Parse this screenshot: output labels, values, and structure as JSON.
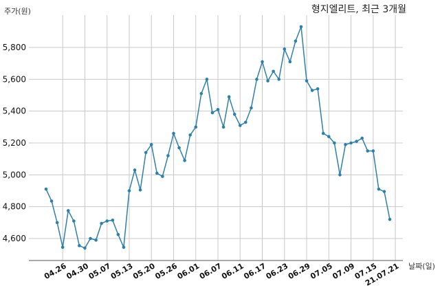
{
  "chart_data": {
    "type": "line",
    "title": "형지엘리트, 최근 3개월",
    "ylabel": "주가(원)",
    "xlabel": "날짜(일)",
    "ylim": [
      4450,
      5980
    ],
    "yticks": [
      4600,
      4800,
      5000,
      5200,
      5400,
      5600,
      5800
    ],
    "ytick_labels": [
      "4,600",
      "4,800",
      "5,000",
      "5,200",
      "5,400",
      "5,600",
      "5,800"
    ],
    "xtick_labels": [
      "04.26",
      "04.30",
      "05.07",
      "05.13",
      "05.20",
      "05.26",
      "06.01",
      "06.07",
      "06.11",
      "06.17",
      "06.23",
      "06.29",
      "07.05",
      "07.09",
      "07.15",
      "21.07.21"
    ],
    "xtick_index": [
      3,
      7,
      11,
      15,
      19,
      23,
      27,
      31,
      35,
      39,
      43,
      47,
      51,
      55,
      59,
      63
    ],
    "grid": true,
    "series": [
      {
        "color": "#2f7fa8",
        "values": [
          4910,
          4835,
          4700,
          4545,
          4775,
          4710,
          4555,
          4540,
          4600,
          4590,
          4695,
          4710,
          4715,
          4625,
          4545,
          4900,
          5030,
          4905,
          5140,
          5190,
          5010,
          4990,
          5120,
          5260,
          5170,
          5090,
          5250,
          5300,
          5510,
          5600,
          5390,
          5410,
          5300,
          5490,
          5380,
          5310,
          5330,
          5420,
          5600,
          5710,
          5590,
          5650,
          5600,
          5790,
          5710,
          5840,
          5930,
          5590,
          5530,
          5540,
          5260,
          5240,
          5200,
          5000,
          5190,
          5200,
          5210,
          5230,
          5150,
          5150,
          4910,
          4895,
          4720
        ]
      }
    ]
  }
}
